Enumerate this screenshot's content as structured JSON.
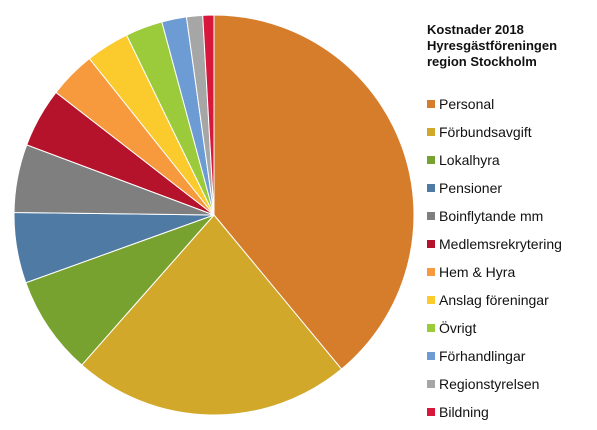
{
  "chart_data": {
    "type": "pie",
    "title": [
      "Kostnader 2018",
      "Hyresgästföreningen",
      "region Stockholm"
    ],
    "legend_position": "right",
    "start_angle_deg": 0,
    "direction": "clockwise",
    "slices": [
      {
        "label": "Personal",
        "value": 39.0,
        "color": "#D67D2B"
      },
      {
        "label": "Förbundsavgift",
        "value": 22.5,
        "color": "#D2A82B"
      },
      {
        "label": "Lokalhyra",
        "value": 8.0,
        "color": "#78A22F"
      },
      {
        "label": "Pensioner",
        "value": 5.7,
        "color": "#4F7AA3"
      },
      {
        "label": "Boinflytande mm",
        "value": 5.5,
        "color": "#7F7F7F"
      },
      {
        "label": "Medlemsrekrytering",
        "value": 4.8,
        "color": "#B5122C"
      },
      {
        "label": "Hem & Hyra",
        "value": 3.8,
        "color": "#F79A3E"
      },
      {
        "label": "Anslag föreningar",
        "value": 3.5,
        "color": "#FBCB2D"
      },
      {
        "label": "Övrigt",
        "value": 3.0,
        "color": "#9BCB3B"
      },
      {
        "label": "Förhandlingar",
        "value": 2.0,
        "color": "#6C9CD3"
      },
      {
        "label": "Regionstyrelsen",
        "value": 1.3,
        "color": "#A6A6A6"
      },
      {
        "label": "Bildning",
        "value": 0.9,
        "color": "#D8173C"
      }
    ]
  }
}
